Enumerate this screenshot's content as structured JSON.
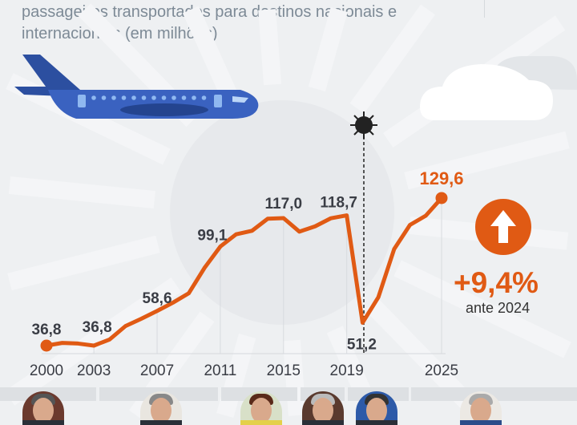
{
  "header": {
    "subtitle": "passageiros transportados para destinos nacionais e internacionais (em milhões)"
  },
  "annotation": {
    "change": "+9,4%",
    "change_note": "ante 2024",
    "event_icon": "virus-icon",
    "trend_icon": "arrow-up-icon"
  },
  "colors": {
    "line": "#e05a14",
    "text": "#3a3d45",
    "background": "#eef0f2"
  },
  "chart_data": {
    "type": "line",
    "x": [
      2000,
      2001,
      2002,
      2003,
      2004,
      2005,
      2006,
      2007,
      2008,
      2009,
      2010,
      2011,
      2012,
      2013,
      2014,
      2015,
      2016,
      2017,
      2018,
      2019,
      2020,
      2021,
      2022,
      2023,
      2024,
      2025
    ],
    "values": [
      36.8,
      38.5,
      38.1,
      36.8,
      40.7,
      49.1,
      53.7,
      58.6,
      63.8,
      69.7,
      85.7,
      99.1,
      106.8,
      109.0,
      116.6,
      117.0,
      108.5,
      111.8,
      116.9,
      118.7,
      51.2,
      67.2,
      97.5,
      112.7,
      118.5,
      129.6
    ],
    "data_labels": [
      {
        "x": 2000,
        "label": "36,8"
      },
      {
        "x": 2003,
        "label": "36,8"
      },
      {
        "x": 2007,
        "label": "58,6"
      },
      {
        "x": 2011,
        "label": "99,1"
      },
      {
        "x": 2015,
        "label": "117,0"
      },
      {
        "x": 2019,
        "label": "118,7"
      },
      {
        "x": 2020,
        "label": "51,2"
      },
      {
        "x": 2025,
        "label": "129,6"
      }
    ],
    "xticks": [
      "2000",
      "2003",
      "2007",
      "2011",
      "2015",
      "2019",
      "2025"
    ],
    "grid": false,
    "xlabel": "",
    "ylabel": ""
  },
  "presidents": [
    "avatar-1",
    "avatar-2",
    "avatar-3",
    "avatar-4",
    "avatar-5",
    "avatar-6"
  ]
}
